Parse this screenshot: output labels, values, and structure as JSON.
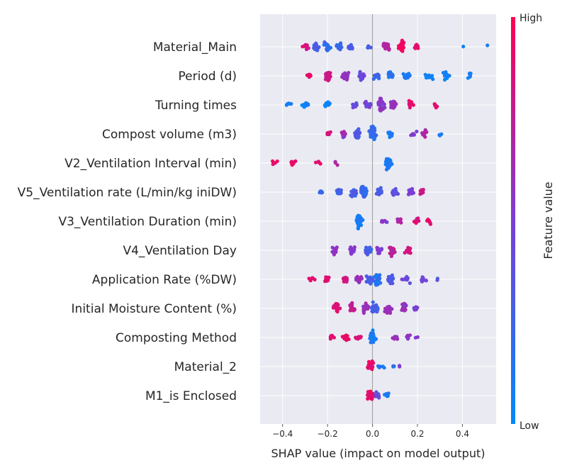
{
  "chart_data": {
    "type": "scatter",
    "subtype": "shap-beeswarm",
    "title": "",
    "xlabel": "SHAP value (impact on model output)",
    "ylabel": "",
    "xlim": [
      -0.5,
      0.55
    ],
    "xticks": [
      -0.4,
      -0.2,
      0.0,
      0.2,
      0.4
    ],
    "xtick_labels": [
      "−0.4",
      "−0.2",
      "0.0",
      "0.2",
      "0.4"
    ],
    "grid": true,
    "features": [
      {
        "name": "Material_Main",
        "clusters": [
          [
            -0.3,
            0.8,
            12
          ],
          [
            -0.25,
            0.3,
            18
          ],
          [
            -0.2,
            0.2,
            18
          ],
          [
            -0.15,
            0.2,
            16
          ],
          [
            -0.1,
            0.3,
            12
          ],
          [
            -0.02,
            0.3,
            4
          ],
          [
            0.06,
            0.7,
            18
          ],
          [
            0.13,
            0.95,
            34
          ],
          [
            0.19,
            0.9,
            8
          ],
          [
            0.4,
            0.1,
            1
          ],
          [
            0.5,
            0.1,
            1
          ]
        ]
      },
      {
        "name": "Period (d)",
        "clusters": [
          [
            -0.28,
            0.9,
            6
          ],
          [
            -0.2,
            0.8,
            22
          ],
          [
            -0.12,
            0.6,
            22
          ],
          [
            -0.05,
            0.45,
            16
          ],
          [
            0.02,
            0.25,
            14
          ],
          [
            0.08,
            0.15,
            14
          ],
          [
            0.15,
            0.1,
            12
          ],
          [
            0.25,
            0.05,
            12
          ],
          [
            0.33,
            0.05,
            14
          ],
          [
            0.43,
            0.05,
            6
          ]
        ]
      },
      {
        "name": "Turning times",
        "clusters": [
          [
            -0.37,
            0.05,
            6
          ],
          [
            -0.3,
            0.05,
            10
          ],
          [
            -0.2,
            0.05,
            14
          ],
          [
            -0.08,
            0.4,
            10
          ],
          [
            -0.02,
            0.5,
            20
          ],
          [
            0.04,
            0.55,
            40
          ],
          [
            0.09,
            0.6,
            22
          ],
          [
            0.17,
            0.9,
            12
          ],
          [
            0.28,
            0.9,
            6
          ]
        ]
      },
      {
        "name": "Compost volume (m3)",
        "clusters": [
          [
            -0.2,
            0.85,
            8
          ],
          [
            -0.13,
            0.6,
            14
          ],
          [
            -0.07,
            0.3,
            26
          ],
          [
            0.0,
            0.2,
            36
          ],
          [
            0.08,
            0.1,
            10
          ],
          [
            0.18,
            0.5,
            10
          ],
          [
            0.23,
            0.7,
            12
          ],
          [
            0.3,
            0.1,
            4
          ]
        ]
      },
      {
        "name": "V2_Ventilation Interval (min)",
        "clusters": [
          [
            -0.44,
            0.95,
            4
          ],
          [
            -0.35,
            0.92,
            10
          ],
          [
            -0.24,
            0.9,
            4
          ],
          [
            -0.16,
            0.7,
            3
          ],
          [
            0.07,
            0.1,
            40
          ]
        ]
      },
      {
        "name": "V5_Ventilation rate (L/min/kg iniDW)",
        "clusters": [
          [
            -0.23,
            0.2,
            6
          ],
          [
            -0.15,
            0.3,
            14
          ],
          [
            -0.08,
            0.3,
            18
          ],
          [
            -0.04,
            0.2,
            30
          ],
          [
            0.03,
            0.3,
            24
          ],
          [
            0.1,
            0.4,
            18
          ],
          [
            0.17,
            0.5,
            12
          ],
          [
            0.22,
            0.8,
            10
          ]
        ]
      },
      {
        "name": "V3_Ventilation Duration (min)",
        "clusters": [
          [
            -0.06,
            0.08,
            40
          ],
          [
            0.05,
            0.5,
            8
          ],
          [
            0.12,
            0.7,
            8
          ],
          [
            0.2,
            0.85,
            10
          ],
          [
            0.25,
            0.9,
            8
          ]
        ]
      },
      {
        "name": "V4_Ventilation Day",
        "clusters": [
          [
            -0.17,
            0.6,
            22
          ],
          [
            -0.09,
            0.55,
            18
          ],
          [
            -0.02,
            0.3,
            24
          ],
          [
            0.03,
            0.5,
            14
          ],
          [
            0.09,
            0.75,
            24
          ],
          [
            0.16,
            0.85,
            14
          ]
        ]
      },
      {
        "name": "Application Rate (%DW)",
        "clusters": [
          [
            -0.27,
            0.9,
            6
          ],
          [
            -0.2,
            0.85,
            12
          ],
          [
            -0.12,
            0.8,
            16
          ],
          [
            -0.06,
            0.6,
            14
          ],
          [
            -0.01,
            0.3,
            18
          ],
          [
            0.02,
            0.15,
            30
          ],
          [
            0.08,
            0.3,
            22
          ],
          [
            0.15,
            0.4,
            14
          ],
          [
            0.23,
            0.45,
            8
          ],
          [
            0.29,
            0.3,
            2
          ]
        ]
      },
      {
        "name": "Initial Moisture Content (%)",
        "clusters": [
          [
            -0.16,
            0.88,
            20
          ],
          [
            -0.09,
            0.75,
            20
          ],
          [
            -0.03,
            0.6,
            22
          ],
          [
            0.01,
            0.3,
            26
          ],
          [
            0.07,
            0.6,
            20
          ],
          [
            0.14,
            0.6,
            18
          ],
          [
            0.19,
            0.5,
            6
          ]
        ]
      },
      {
        "name": "Composting Method",
        "clusters": [
          [
            -0.18,
            0.9,
            8
          ],
          [
            -0.12,
            0.9,
            14
          ],
          [
            -0.06,
            0.88,
            10
          ],
          [
            0.0,
            0.1,
            36
          ],
          [
            0.1,
            0.6,
            8
          ],
          [
            0.16,
            0.55,
            6
          ],
          [
            0.2,
            0.5,
            2
          ]
        ]
      },
      {
        "name": "Material_2",
        "clusters": [
          [
            -0.01,
            0.9,
            22
          ],
          [
            0.04,
            0.1,
            6
          ],
          [
            0.09,
            0.2,
            4
          ],
          [
            0.12,
            0.5,
            2
          ]
        ]
      },
      {
        "name": "M1_is Enclosed",
        "clusters": [
          [
            -0.01,
            0.9,
            26
          ],
          [
            0.02,
            0.4,
            12
          ],
          [
            0.06,
            0.1,
            8
          ]
        ]
      }
    ],
    "colorbar": {
      "label": "Feature value",
      "high_label": "High",
      "low_label": "Low",
      "low_color": "#008afb",
      "mid_color": "#7c3dd6",
      "high_color": "#ff0052"
    },
    "plot_background": "#eaeaf2"
  }
}
